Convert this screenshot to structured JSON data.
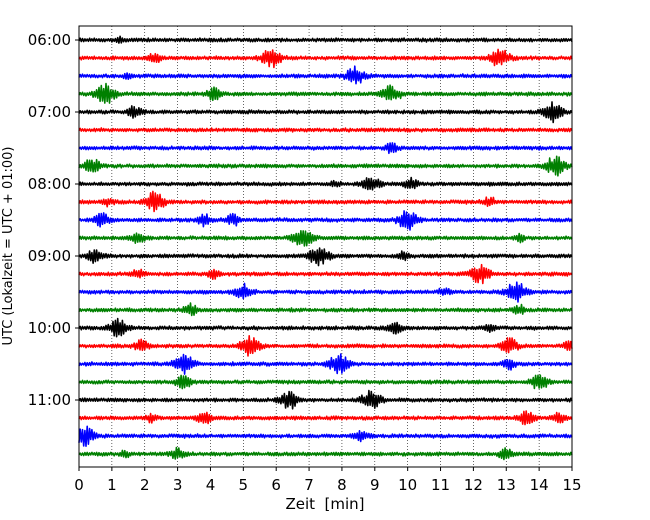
{
  "chart_data": {
    "type": "line",
    "title": "",
    "xlabel": "Zeit  [min]",
    "ylabel": "UTC (Lokalzeit = UTC + 01:00)",
    "xlim": [
      0,
      15
    ],
    "x_ticks": [
      "0",
      "1",
      "2",
      "3",
      "4",
      "5",
      "6",
      "7",
      "8",
      "9",
      "10",
      "11",
      "12",
      "13",
      "14",
      "15"
    ],
    "y_hour_labels": [
      "06:00",
      "07:00",
      "08:00",
      "09:00",
      "10:00",
      "11:00"
    ],
    "grid": "vertical dotted",
    "trace_colors": [
      "#000000",
      "#ff0000",
      "#0000ff",
      "#008000"
    ],
    "traces": [
      {
        "start": "06:00",
        "color": "#000000",
        "events": [
          {
            "t": 1.2,
            "a": 0.3
          }
        ]
      },
      {
        "start": "06:15",
        "color": "#ff0000",
        "events": [
          {
            "t": 2.3,
            "a": 0.5
          },
          {
            "t": 5.85,
            "a": 1.0
          },
          {
            "t": 12.8,
            "a": 1.0
          }
        ]
      },
      {
        "start": "06:30",
        "color": "#0000ff",
        "events": [
          {
            "t": 1.5,
            "a": 0.3
          },
          {
            "t": 8.4,
            "a": 0.9
          }
        ]
      },
      {
        "start": "06:45",
        "color": "#008000",
        "events": [
          {
            "t": 0.8,
            "a": 1.0
          },
          {
            "t": 4.1,
            "a": 0.6
          },
          {
            "t": 9.5,
            "a": 0.9
          }
        ]
      },
      {
        "start": "07:00",
        "color": "#000000",
        "events": [
          {
            "t": 1.7,
            "a": 0.6
          },
          {
            "t": 14.4,
            "a": 1.0
          }
        ]
      },
      {
        "start": "07:15",
        "color": "#ff0000",
        "events": []
      },
      {
        "start": "07:30",
        "color": "#0000ff",
        "events": [
          {
            "t": 9.5,
            "a": 0.5
          }
        ]
      },
      {
        "start": "07:45",
        "color": "#008000",
        "events": [
          {
            "t": 0.4,
            "a": 0.8
          },
          {
            "t": 14.5,
            "a": 1.0
          }
        ]
      },
      {
        "start": "08:00",
        "color": "#000000",
        "events": [
          {
            "t": 7.8,
            "a": 0.3
          },
          {
            "t": 8.9,
            "a": 0.8
          },
          {
            "t": 10.1,
            "a": 0.6
          }
        ]
      },
      {
        "start": "08:15",
        "color": "#ff0000",
        "events": [
          {
            "t": 0.9,
            "a": 0.4
          },
          {
            "t": 2.3,
            "a": 1.0
          },
          {
            "t": 12.5,
            "a": 0.5
          }
        ]
      },
      {
        "start": "08:30",
        "color": "#0000ff",
        "events": [
          {
            "t": 0.7,
            "a": 0.7
          },
          {
            "t": 3.8,
            "a": 0.6
          },
          {
            "t": 4.7,
            "a": 0.6
          },
          {
            "t": 10.0,
            "a": 1.0
          }
        ]
      },
      {
        "start": "08:45",
        "color": "#008000",
        "events": [
          {
            "t": 1.8,
            "a": 0.6
          },
          {
            "t": 6.8,
            "a": 1.0
          },
          {
            "t": 13.4,
            "a": 0.4
          }
        ]
      },
      {
        "start": "09:00",
        "color": "#000000",
        "events": [
          {
            "t": 0.5,
            "a": 0.7
          },
          {
            "t": 7.3,
            "a": 1.0
          },
          {
            "t": 9.9,
            "a": 0.5
          }
        ]
      },
      {
        "start": "09:15",
        "color": "#ff0000",
        "events": [
          {
            "t": 1.8,
            "a": 0.5
          },
          {
            "t": 4.1,
            "a": 0.5
          },
          {
            "t": 12.2,
            "a": 1.0
          }
        ]
      },
      {
        "start": "09:30",
        "color": "#0000ff",
        "events": [
          {
            "t": 5.0,
            "a": 0.8
          },
          {
            "t": 11.1,
            "a": 0.4
          },
          {
            "t": 13.3,
            "a": 1.0
          }
        ]
      },
      {
        "start": "09:45",
        "color": "#008000",
        "events": [
          {
            "t": 3.4,
            "a": 0.6
          },
          {
            "t": 13.4,
            "a": 0.5
          }
        ]
      },
      {
        "start": "10:00",
        "color": "#000000",
        "events": [
          {
            "t": 1.2,
            "a": 0.9
          },
          {
            "t": 9.6,
            "a": 0.6
          },
          {
            "t": 12.5,
            "a": 0.4
          }
        ]
      },
      {
        "start": "10:15",
        "color": "#ff0000",
        "events": [
          {
            "t": 1.9,
            "a": 0.6
          },
          {
            "t": 5.2,
            "a": 1.0
          },
          {
            "t": 13.1,
            "a": 0.8
          },
          {
            "t": 14.9,
            "a": 0.5
          }
        ]
      },
      {
        "start": "10:30",
        "color": "#0000ff",
        "events": [
          {
            "t": 3.2,
            "a": 1.0
          },
          {
            "t": 7.9,
            "a": 1.0
          },
          {
            "t": 13.1,
            "a": 0.5
          }
        ]
      },
      {
        "start": "10:45",
        "color": "#008000",
        "events": [
          {
            "t": 3.2,
            "a": 0.7
          },
          {
            "t": 14.0,
            "a": 0.8
          }
        ]
      },
      {
        "start": "11:00",
        "color": "#000000",
        "events": [
          {
            "t": 6.4,
            "a": 0.9
          },
          {
            "t": 8.9,
            "a": 1.0
          }
        ]
      },
      {
        "start": "11:15",
        "color": "#ff0000",
        "events": [
          {
            "t": 2.2,
            "a": 0.4
          },
          {
            "t": 3.8,
            "a": 0.6
          },
          {
            "t": 13.6,
            "a": 0.7
          },
          {
            "t": 14.6,
            "a": 0.5
          }
        ]
      },
      {
        "start": "11:30",
        "color": "#0000ff",
        "events": [
          {
            "t": 0.2,
            "a": 1.0
          },
          {
            "t": 8.6,
            "a": 0.6
          }
        ]
      },
      {
        "start": "11:45",
        "color": "#008000",
        "events": [
          {
            "t": 1.4,
            "a": 0.3
          },
          {
            "t": 3.0,
            "a": 0.6
          },
          {
            "t": 13.0,
            "a": 0.6
          }
        ]
      }
    ]
  }
}
